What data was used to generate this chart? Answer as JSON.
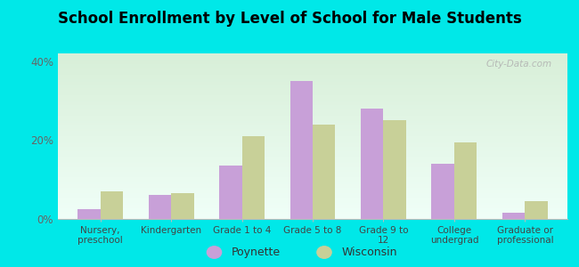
{
  "title": "School Enrollment by Level of School for Male Students",
  "categories": [
    "Nursery,\npreschool",
    "Kindergarten",
    "Grade 1 to 4",
    "Grade 5 to 8",
    "Grade 9 to\n12",
    "College\nundergrad",
    "Graduate or\nprofessional"
  ],
  "poynette": [
    2.5,
    6.0,
    13.5,
    35.0,
    28.0,
    14.0,
    1.5
  ],
  "wisconsin": [
    7.0,
    6.5,
    21.0,
    24.0,
    25.0,
    19.5,
    4.5
  ],
  "poynette_color": "#c8a0d8",
  "wisconsin_color": "#c8d098",
  "background_color": "#00e8e8",
  "ylim": [
    0,
    42
  ],
  "yticks": [
    0,
    20,
    40
  ],
  "ytick_labels": [
    "0%",
    "20%",
    "40%"
  ],
  "legend_labels": [
    "Poynette",
    "Wisconsin"
  ],
  "watermark": "City-Data.com"
}
